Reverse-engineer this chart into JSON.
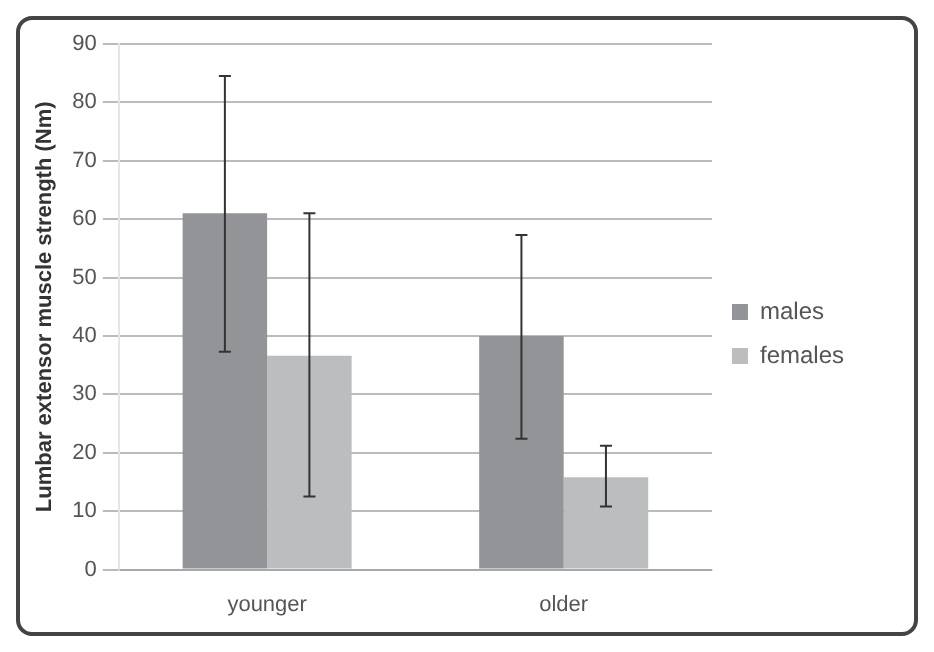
{
  "chart_data": {
    "type": "bar",
    "ylabel": "Lumbar extensor muscle strength (Nm)",
    "categories": [
      "younger",
      "older"
    ],
    "series": [
      {
        "name": "males",
        "color": "#929497",
        "values": [
          61,
          40
        ],
        "errors": [
          [
            37.3,
            84.5
          ],
          [
            22.4,
            57.3
          ]
        ]
      },
      {
        "name": "females",
        "color": "#bcbdbf",
        "values": [
          36.6,
          15.8
        ],
        "errors": [
          [
            12.5,
            61
          ],
          [
            10.8,
            21.2
          ]
        ]
      }
    ],
    "ylim": [
      0,
      90
    ],
    "yticks": [
      0,
      10,
      20,
      30,
      40,
      50,
      60,
      70,
      80,
      90
    ],
    "grid": "y",
    "legend": "right"
  }
}
